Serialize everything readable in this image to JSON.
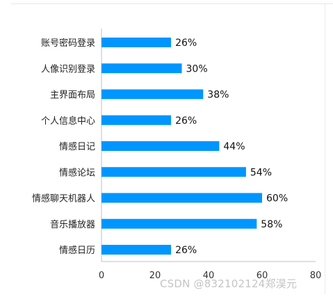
{
  "chart_data": {
    "type": "bar",
    "orientation": "horizontal",
    "categories": [
      "账号密码登录",
      "人像识别登录",
      "主界面布局",
      "个人信息中心",
      "情感日记",
      "情感论坛",
      "情感聊天机器人",
      "音乐播放器",
      "情感日历"
    ],
    "values": [
      26,
      30,
      38,
      26,
      44,
      54,
      60,
      58,
      26
    ],
    "value_labels": [
      "26%",
      "30%",
      "38%",
      "26%",
      "44%",
      "54%",
      "60%",
      "58%",
      "26%"
    ],
    "xlim": [
      0,
      80
    ],
    "xticks": [
      0,
      20,
      40,
      60,
      80
    ],
    "bar_color": "#0096ff",
    "grid": false,
    "title": "",
    "xlabel": "",
    "ylabel": ""
  },
  "watermark": "CSDN @832102124郑淏元"
}
